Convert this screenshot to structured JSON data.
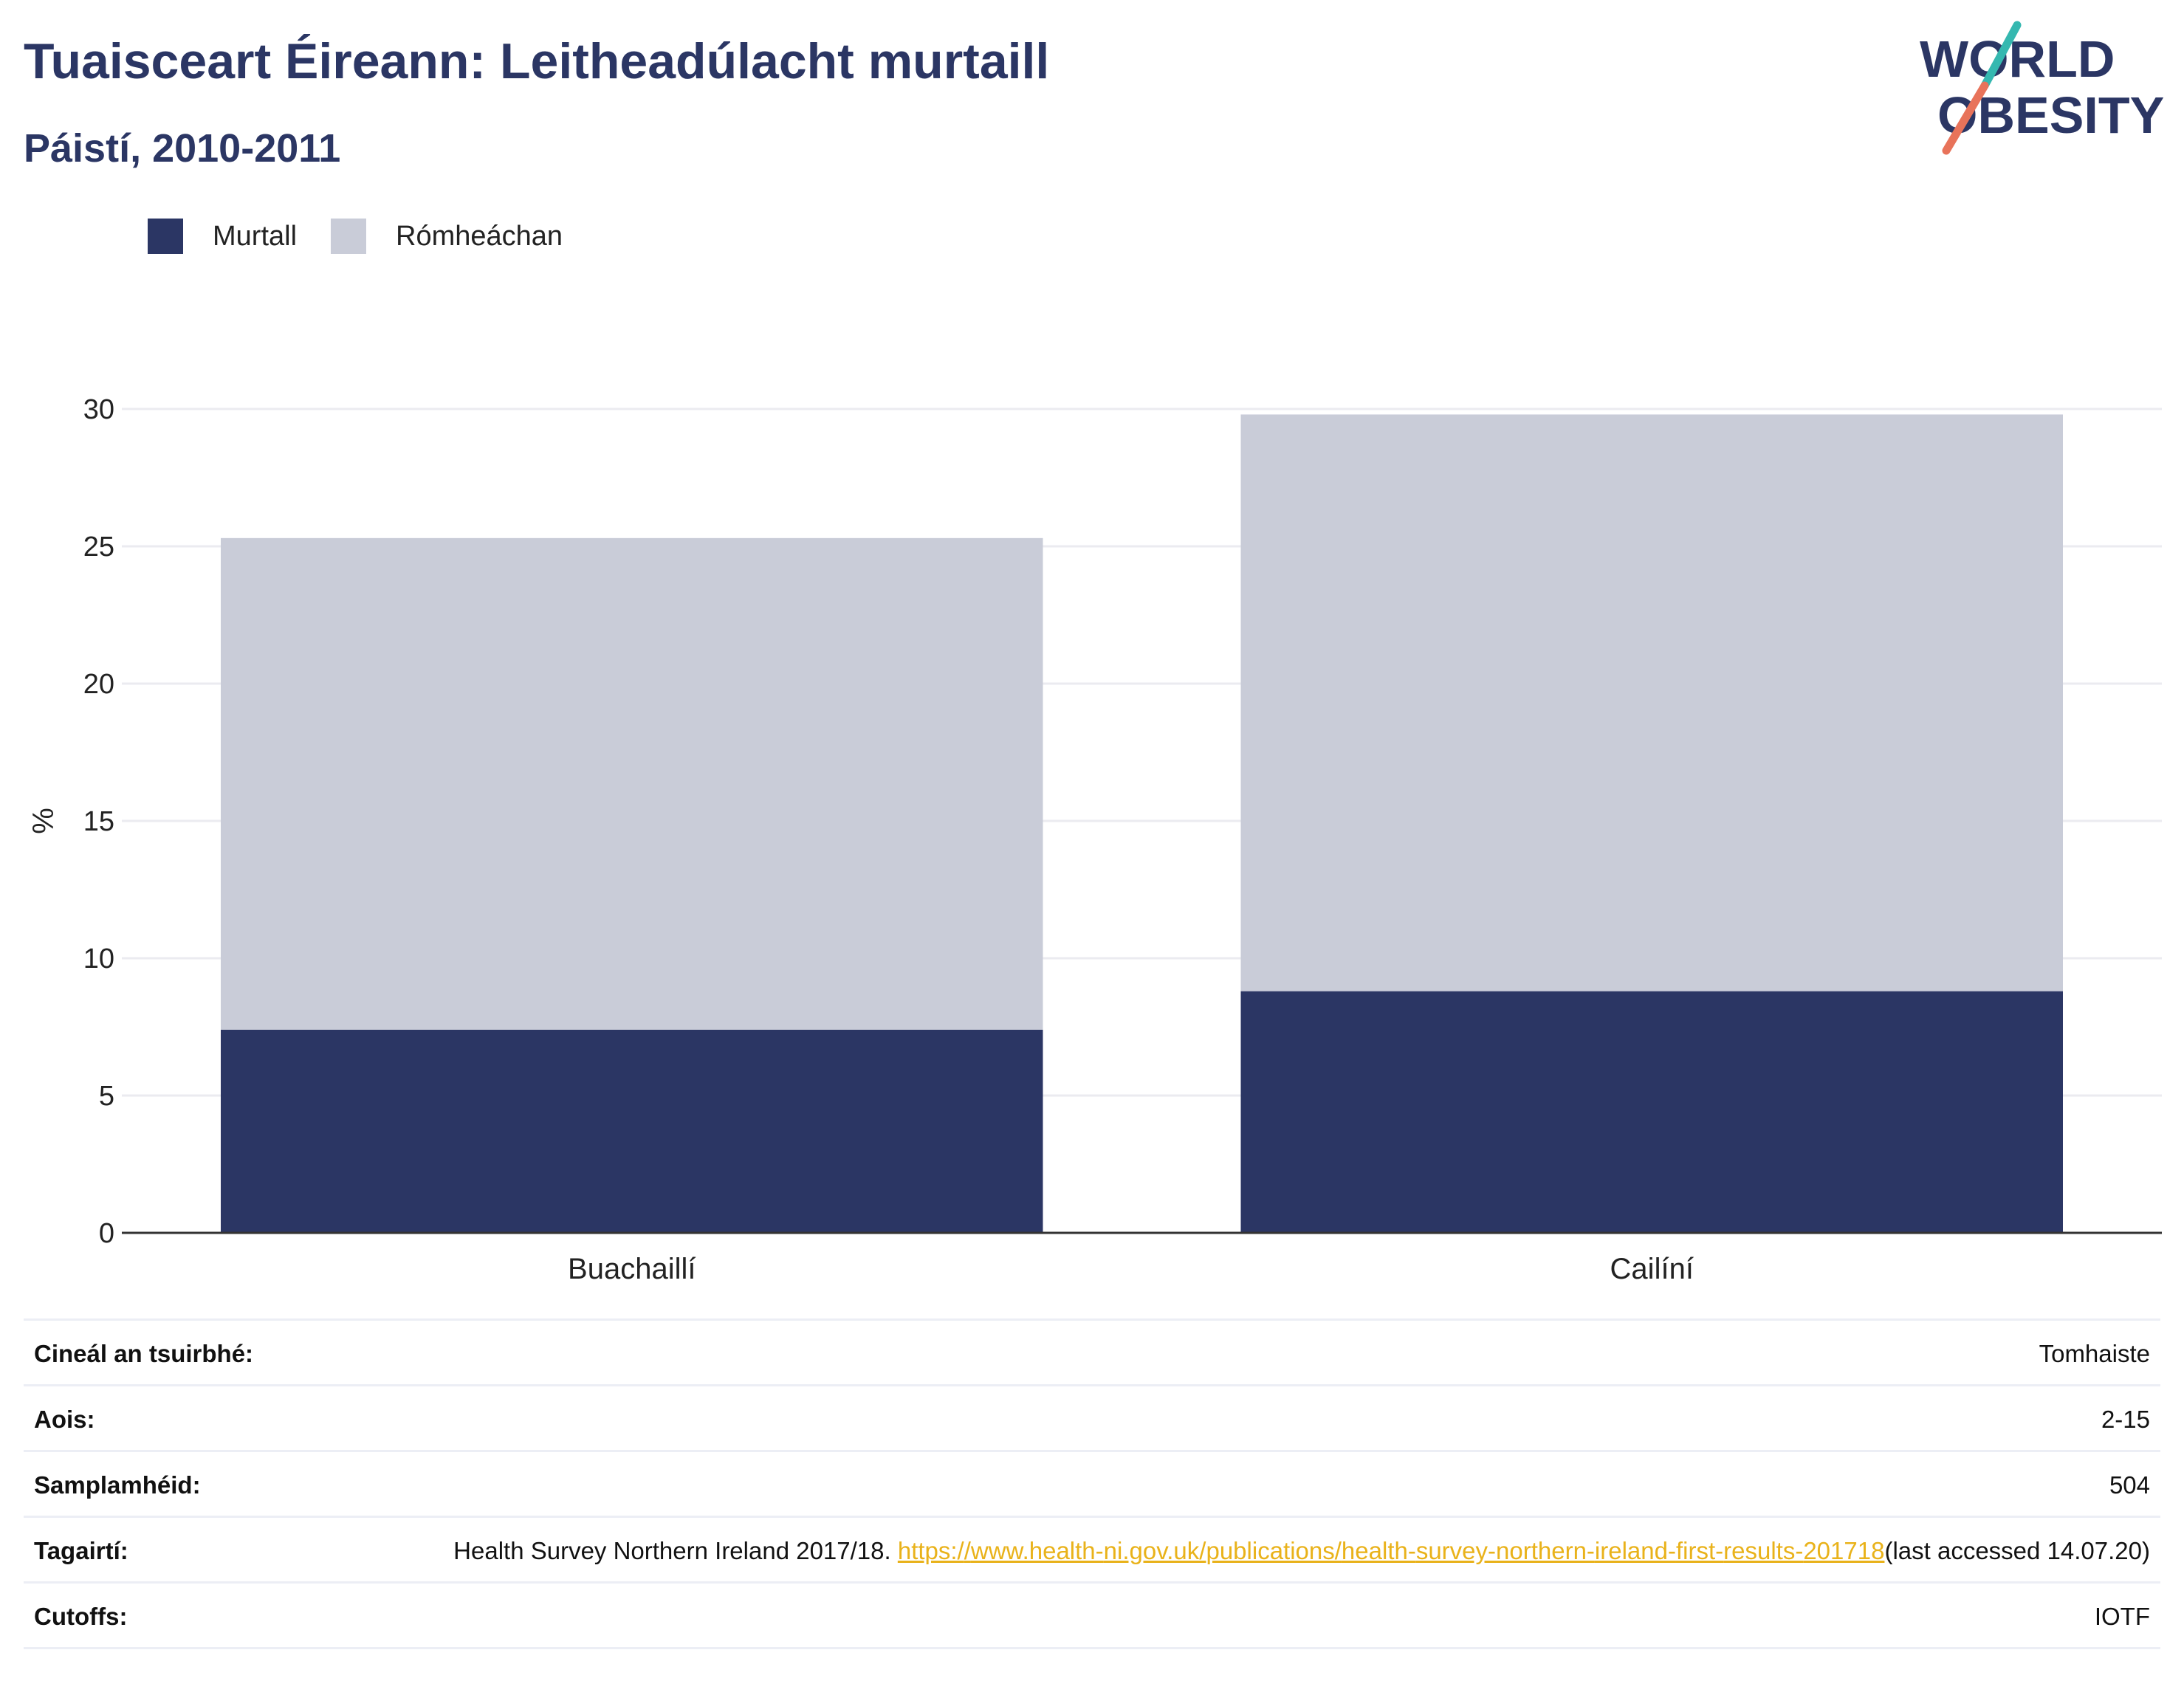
{
  "header": {
    "title": "Tuaisceart Éireann: Leitheadúlacht murtaill",
    "subtitle": "Páistí, 2010-2011"
  },
  "logo": {
    "line1": "WORLD",
    "line2": "OBESITY",
    "accent_teal": "#35b8b0",
    "accent_coral": "#e8735a"
  },
  "chart_data": {
    "type": "bar",
    "stacked": true,
    "categories": [
      "Buachaillí",
      "Cailíní"
    ],
    "series": [
      {
        "name": "Murtall",
        "values": [
          7.4,
          8.8
        ],
        "color": "#2b3664"
      },
      {
        "name": "Rómheáchan",
        "values": [
          17.9,
          21.0
        ],
        "color": "#c9ccd8"
      }
    ],
    "ylabel": "%",
    "ylim": [
      0,
      30
    ],
    "yticks": [
      0,
      5,
      10,
      15,
      20,
      25,
      30
    ],
    "grid": true,
    "legend_position": "top-left"
  },
  "meta": {
    "rows": [
      {
        "label": "Cineál an tsuirbhé:",
        "value": "Tomhaiste"
      },
      {
        "label": "Aois:",
        "value": "2-15"
      },
      {
        "label": "Samplamhéid:",
        "value": "504"
      },
      {
        "label": "Tagairtí:",
        "value_prefix": "Health Survey Northern Ireland 2017/18. ",
        "link": "https://www.health-ni.gov.uk/publications/health-survey-northern-ireland-first-results-201718",
        "value_suffix": "(last accessed 14.07.20)"
      },
      {
        "label": "Cutoffs:",
        "value": "IOTF"
      }
    ]
  }
}
